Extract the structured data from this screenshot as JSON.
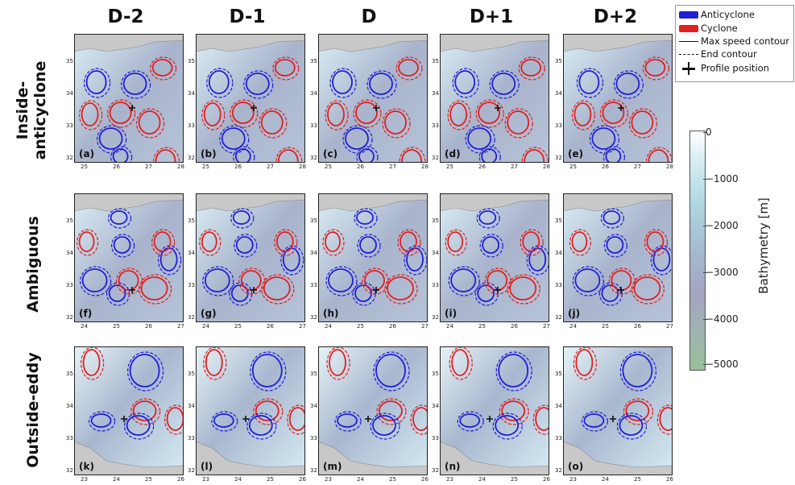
{
  "columns": [
    "D-2",
    "D-1",
    "D",
    "D+1",
    "D+2"
  ],
  "rows": [
    {
      "title_line1": "Inside-",
      "title_line2": "anticyclone"
    },
    {
      "title_line1": "Ambiguous",
      "title_line2": ""
    },
    {
      "title_line1": "Outside-eddy",
      "title_line2": ""
    }
  ],
  "panel_labels": [
    "(a)",
    "(b)",
    "(c)",
    "(d)",
    "(e)",
    "(f)",
    "(g)",
    "(h)",
    "(i)",
    "(j)",
    "(k)",
    "(l)",
    "(m)",
    "(n)",
    "(o)"
  ],
  "lat_ticks": {
    "row1": [
      "35",
      "34",
      "33",
      "32"
    ],
    "row2": [
      "35",
      "34",
      "33",
      "32"
    ],
    "row3": [
      "35",
      "34",
      "33",
      "32"
    ]
  },
  "lon_ticks": {
    "row1": [
      "25",
      "26",
      "27",
      "28"
    ],
    "row2": [
      "24",
      "25",
      "26",
      "27"
    ],
    "row3": [
      "23",
      "24",
      "25",
      "26"
    ]
  },
  "legend": {
    "anticyclone": "Anticyclone",
    "cyclone": "Cyclone",
    "max_speed": "Max speed contour",
    "end_contour": "End contour",
    "profile": "Profile position"
  },
  "colorbar": {
    "title": "Bathymetry [m]",
    "ticks": [
      "0",
      "−1000",
      "−2000",
      "−3000",
      "−4000",
      "−5000"
    ]
  },
  "colors": {
    "anticyclone": "#1f1fd6",
    "cyclone": "#e0201f",
    "land": "#c8c8c8",
    "ocean_deep": "#a9b4cc",
    "ocean_shallow": "#d8eef5"
  }
}
